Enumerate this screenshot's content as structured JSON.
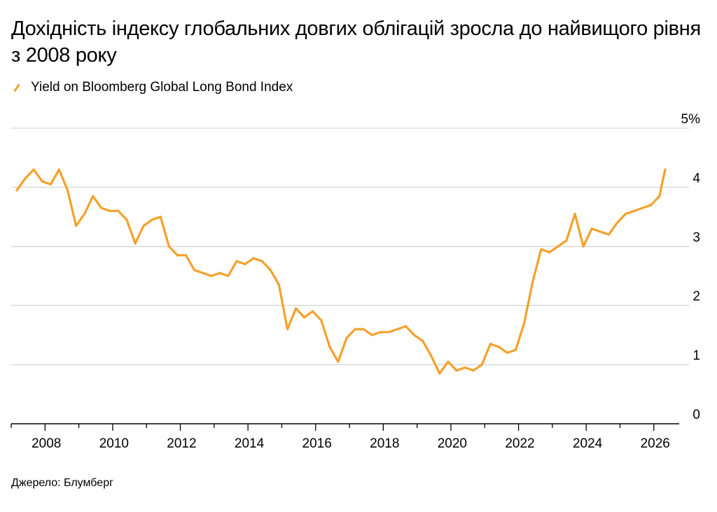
{
  "title": "Дохідність індексу глобальних довгих облігацій зросла до найвищого рівня з 2008 року",
  "legend_label": "Yield on Bloomberg Global Long Bond Index",
  "source": "Джерело: Блумберг",
  "colors": {
    "series": "#f5a12b",
    "grid": "#d6d6d6",
    "axis": "#000000"
  },
  "chart_data": {
    "type": "line",
    "title": "Дохідність індексу глобальних довгих облігацій зросла до найвищого рівня з 2008 року",
    "ylabel": "",
    "xlabel": "",
    "ylim": [
      0,
      5
    ],
    "xlim": [
      "2007-01",
      "2026-10"
    ],
    "y_ticks": [
      "0",
      "1",
      "2",
      "3",
      "4",
      "5%"
    ],
    "x_ticks": [
      "2008",
      "2010",
      "2012",
      "2014",
      "2016",
      "2018",
      "2020",
      "2022",
      "2024",
      "2026"
    ],
    "grid": "horizontal",
    "series": [
      {
        "name": "Yield on Bloomberg Global Long Bond Index",
        "x": [
          "2007-03",
          "2007-06",
          "2007-09",
          "2007-12",
          "2008-03",
          "2008-06",
          "2008-09",
          "2008-12",
          "2009-03",
          "2009-06",
          "2009-09",
          "2009-12",
          "2010-03",
          "2010-06",
          "2010-09",
          "2010-12",
          "2011-03",
          "2011-06",
          "2011-09",
          "2011-12",
          "2012-03",
          "2012-06",
          "2012-09",
          "2012-12",
          "2013-03",
          "2013-06",
          "2013-09",
          "2013-12",
          "2014-03",
          "2014-06",
          "2014-09",
          "2014-12",
          "2015-03",
          "2015-06",
          "2015-09",
          "2015-12",
          "2016-03",
          "2016-06",
          "2016-09",
          "2016-12",
          "2017-03",
          "2017-06",
          "2017-09",
          "2017-12",
          "2018-03",
          "2018-06",
          "2018-09",
          "2018-12",
          "2019-03",
          "2019-06",
          "2019-09",
          "2019-12",
          "2020-03",
          "2020-06",
          "2020-09",
          "2020-12",
          "2021-03",
          "2021-06",
          "2021-09",
          "2021-12",
          "2022-03",
          "2022-06",
          "2022-09",
          "2022-12",
          "2023-03",
          "2023-06",
          "2023-09",
          "2023-12",
          "2024-03",
          "2024-06",
          "2024-09",
          "2024-12",
          "2025-03",
          "2025-06",
          "2025-09",
          "2025-12",
          "2026-03",
          "2026-05"
        ],
        "values": [
          3.95,
          4.15,
          4.3,
          4.1,
          4.05,
          4.3,
          3.95,
          3.35,
          3.55,
          3.85,
          3.65,
          3.6,
          3.6,
          3.45,
          3.05,
          3.35,
          3.45,
          3.5,
          3.0,
          2.85,
          2.85,
          2.6,
          2.55,
          2.5,
          2.55,
          2.5,
          2.75,
          2.7,
          2.8,
          2.75,
          2.6,
          2.35,
          1.6,
          1.95,
          1.8,
          1.9,
          1.75,
          1.3,
          1.05,
          1.45,
          1.6,
          1.6,
          1.5,
          1.55,
          1.55,
          1.6,
          1.65,
          1.5,
          1.4,
          1.15,
          0.85,
          1.05,
          0.9,
          0.95,
          0.9,
          1.0,
          1.35,
          1.3,
          1.2,
          1.25,
          1.7,
          2.4,
          2.95,
          2.9,
          3.0,
          3.1,
          3.55,
          3.0,
          3.3,
          3.25,
          3.2,
          3.4,
          3.55,
          3.6,
          3.65,
          3.7,
          3.85,
          4.3
        ]
      }
    ]
  }
}
